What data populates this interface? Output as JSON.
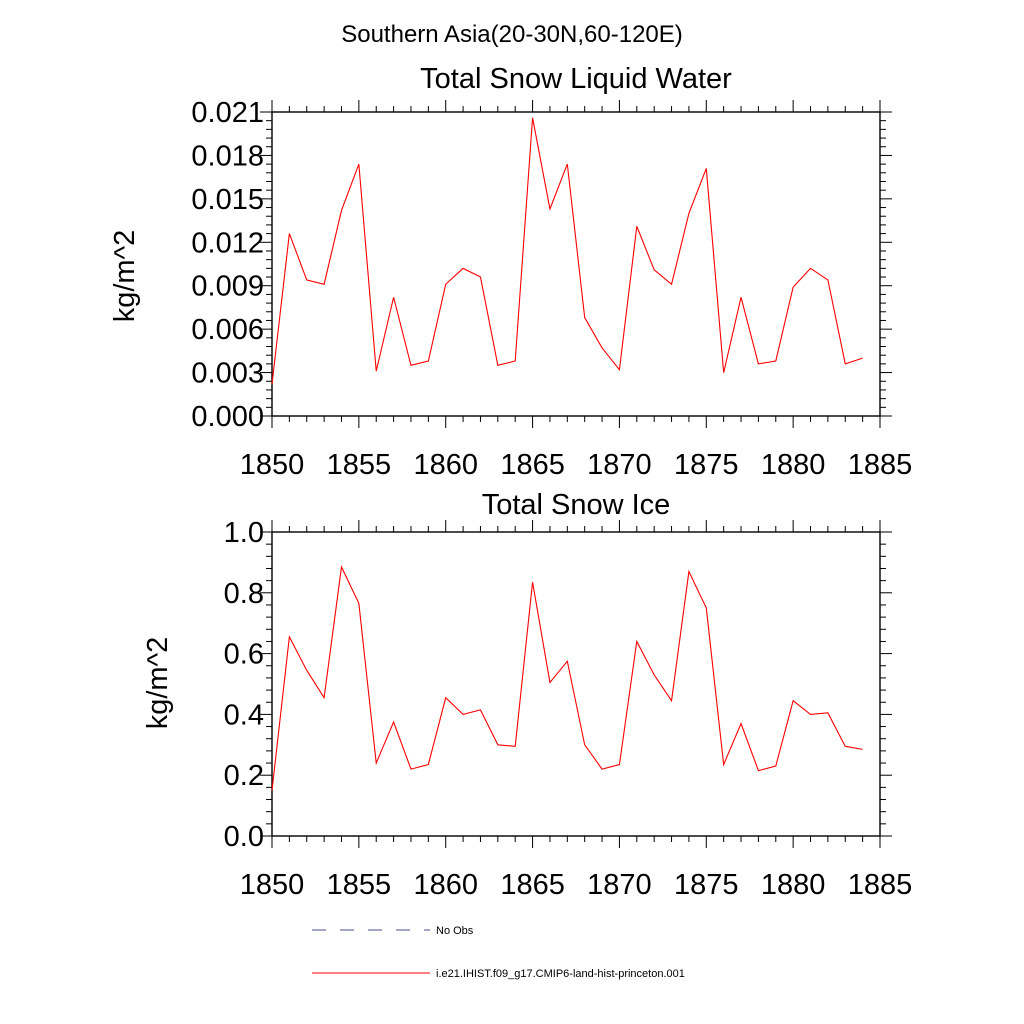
{
  "figure": {
    "suptitle": "Southern Asia(20-30N,60-120E)"
  },
  "chart_data": [
    {
      "type": "line",
      "title": "Total Snow Liquid Water",
      "xlabel": "",
      "ylabel": "kg/m^2",
      "xlim": [
        1850,
        1885
      ],
      "ylim": [
        0.0,
        0.021
      ],
      "xticks": [
        1850,
        1855,
        1860,
        1865,
        1870,
        1875,
        1880,
        1885
      ],
      "xtick_labels": [
        "1850",
        "1855",
        "1860",
        "1865",
        "1870",
        "1875",
        "1880",
        "1885"
      ],
      "yticks": [
        0.0,
        0.003,
        0.006,
        0.009,
        0.012,
        0.015,
        0.018,
        0.021
      ],
      "ytick_labels": [
        "0.000",
        "0.003",
        "0.006",
        "0.009",
        "0.012",
        "0.015",
        "0.018",
        "0.021"
      ],
      "grid": false,
      "x": [
        1850,
        1851,
        1852,
        1853,
        1854,
        1855,
        1856,
        1857,
        1858,
        1859,
        1860,
        1861,
        1862,
        1863,
        1864,
        1865,
        1866,
        1867,
        1868,
        1869,
        1870,
        1871,
        1872,
        1873,
        1874,
        1875,
        1876,
        1877,
        1878,
        1879,
        1880,
        1881,
        1882,
        1883,
        1884
      ],
      "series": [
        {
          "name": "i.e21.IHIST.f09_g17.CMIP6-land-hist-princeton.001",
          "color": "#ff0000",
          "values": [
            0.0022,
            0.0126,
            0.0094,
            0.0091,
            0.0142,
            0.0174,
            0.0031,
            0.0082,
            0.0035,
            0.0038,
            0.0091,
            0.0102,
            0.0096,
            0.0035,
            0.0038,
            0.0206,
            0.0143,
            0.0174,
            0.0068,
            0.0047,
            0.0032,
            0.0131,
            0.0101,
            0.0091,
            0.014,
            0.0171,
            0.003,
            0.0082,
            0.0036,
            0.0038,
            0.0089,
            0.0102,
            0.0094,
            0.0036,
            0.004
          ]
        }
      ]
    },
    {
      "type": "line",
      "title": "Total Snow Ice",
      "xlabel": "",
      "ylabel": "kg/m^2",
      "xlim": [
        1850,
        1885
      ],
      "ylim": [
        0.0,
        1.0
      ],
      "xticks": [
        1850,
        1855,
        1860,
        1865,
        1870,
        1875,
        1880,
        1885
      ],
      "xtick_labels": [
        "1850",
        "1855",
        "1860",
        "1865",
        "1870",
        "1875",
        "1880",
        "1885"
      ],
      "yticks": [
        0.0,
        0.2,
        0.4,
        0.6,
        0.8,
        1.0
      ],
      "ytick_labels": [
        "0.0",
        "0.2",
        "0.4",
        "0.6",
        "0.8",
        "1.0"
      ],
      "grid": false,
      "x": [
        1850,
        1851,
        1852,
        1853,
        1854,
        1855,
        1856,
        1857,
        1858,
        1859,
        1860,
        1861,
        1862,
        1863,
        1864,
        1865,
        1866,
        1867,
        1868,
        1869,
        1870,
        1871,
        1872,
        1873,
        1874,
        1875,
        1876,
        1877,
        1878,
        1879,
        1880,
        1881,
        1882,
        1883,
        1884
      ],
      "series": [
        {
          "name": "i.e21.IHIST.f09_g17.CMIP6-land-hist-princeton.001",
          "color": "#ff0000",
          "values": [
            0.15,
            0.655,
            0.545,
            0.455,
            0.885,
            0.765,
            0.24,
            0.375,
            0.22,
            0.235,
            0.455,
            0.4,
            0.415,
            0.3,
            0.295,
            0.835,
            0.505,
            0.575,
            0.3,
            0.22,
            0.235,
            0.64,
            0.53,
            0.445,
            0.87,
            0.75,
            0.235,
            0.37,
            0.215,
            0.23,
            0.445,
            0.4,
            0.405,
            0.295,
            0.285
          ]
        }
      ]
    }
  ],
  "legend": {
    "placement": "bottom",
    "items": [
      {
        "label": "No Obs",
        "color": "#4a4a8a",
        "style": "dashed"
      },
      {
        "label": "i.e21.IHIST.f09_g17.CMIP6-land-hist-princeton.001",
        "color": "#ff0000",
        "style": "solid"
      }
    ]
  }
}
